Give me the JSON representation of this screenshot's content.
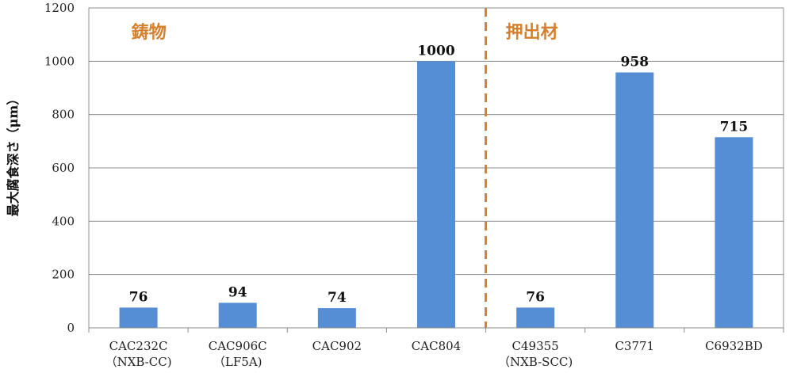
{
  "chart_data": {
    "type": "bar",
    "categories": [
      [
        "CAC232C",
        "（NXB-CC)"
      ],
      [
        "CAC906C",
        "（LF5A)"
      ],
      [
        "CAC902"
      ],
      [
        "CAC804"
      ],
      [
        "C49355",
        "（NXB-SCC)"
      ],
      [
        "C3771"
      ],
      [
        "C6932BD"
      ]
    ],
    "values": [
      76,
      94,
      74,
      1000,
      76,
      958,
      715
    ],
    "data_labels": [
      "76",
      "94",
      "74",
      "1000",
      "76",
      "958",
      "715"
    ],
    "ylabel": "最大腐食深さ（μm）",
    "ylim": [
      0,
      1200
    ],
    "yticks": [
      0,
      200,
      400,
      600,
      800,
      1000,
      1200
    ],
    "ytick_labels": [
      "0",
      "200",
      "400",
      "600",
      "800",
      "1000",
      "1200"
    ],
    "grid": true,
    "bar_color": "#558ed5",
    "groups": [
      {
        "label": "鋳物",
        "from_index": 0,
        "to_index": 3,
        "color": "#d4802c"
      },
      {
        "label": "押出材",
        "from_index": 4,
        "to_index": 6,
        "color": "#d4802c"
      }
    ],
    "separator_after_index": 3,
    "separator_color": "#d4802c"
  }
}
